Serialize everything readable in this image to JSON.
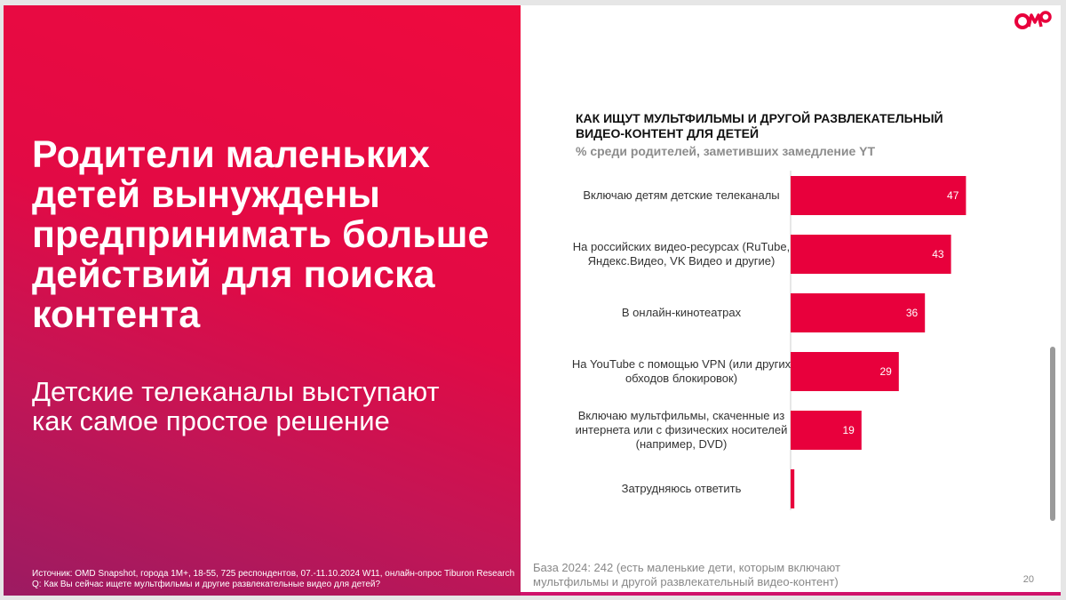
{
  "slide": {
    "headline": "Родители маленьких детей вынуждены предпринимать больше действий для поиска контента",
    "subheadline": "Детские телеканалы выступают как самое простое решение",
    "source_line1": "Источник: OMD Snapshot, города 1M+, 18-55, 725 респондентов, 07.-11.10.2024 W11, онлайн-опрос Tiburon Research",
    "source_line2": "Q: Как Вы сейчас ищете мультфильмы и другие развлекательные видео для детей?",
    "base_note": "База 2024: 242 (есть маленькие дети, которым включают мультфильмы и другой развлекательный видео-контент)",
    "page_number": "20",
    "logo_text": "OMD",
    "colors": {
      "brand_red": "#e8003c",
      "text_gray": "#888888"
    }
  },
  "chart_data": {
    "type": "bar",
    "orientation": "horizontal",
    "title": "КАК ИЩУТ МУЛЬТФИЛЬМЫ И ДРУГОЙ РАЗВЛЕКАТЕЛЬНЫЙ ВИДЕО-КОНТЕНТ ДЛЯ ДЕТЕЙ",
    "subtitle": "% среди родителей, заметивших замедление YT",
    "categories": [
      "Включаю детям детские телеканалы",
      "На российских видео-ресурсах (RuTube, Яндекс.Видео, VK Видео и другие)",
      "В онлайн-кинотеатрах",
      "На YouTube с помощью VPN (или других обходов блокировок)",
      "Включаю мультфильмы, скаченные из интернета или с физических носителей (например, DVD)",
      "Затрудняюсь ответить"
    ],
    "values": [
      47,
      43,
      36,
      29,
      19,
      1
    ],
    "data_labels": [
      "47",
      "43",
      "36",
      "29",
      "19",
      ""
    ],
    "bar_color": "#e8003c",
    "xlim": [
      0,
      60
    ],
    "grid": false,
    "legend": "none"
  }
}
